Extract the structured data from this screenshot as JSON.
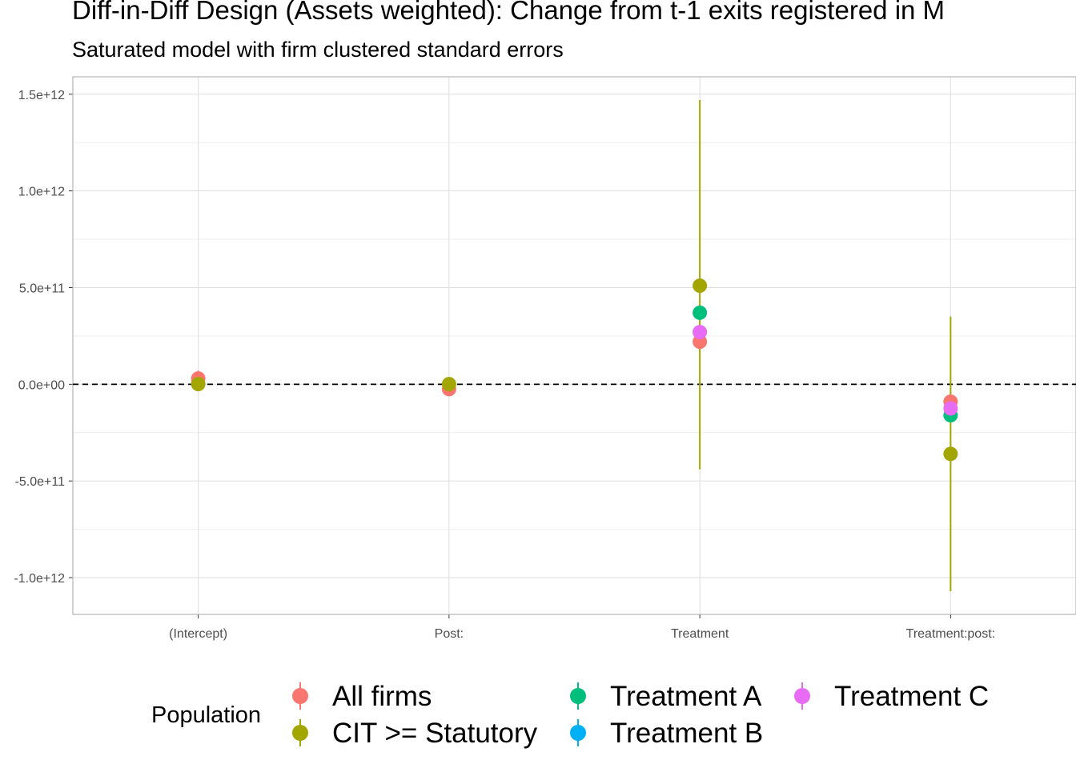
{
  "chart_data": {
    "type": "scatter",
    "title": "Diff-in-Diff Design (Assets weighted): Change from t-1 exits registered in M",
    "subtitle": "Saturated model with firm clustered standard errors",
    "xlabel": "",
    "ylabel": "",
    "categories": [
      "(Intercept)",
      "Post:",
      "Treatment",
      "Treatment:post:"
    ],
    "y_ticks": [
      {
        "value": 1500000000000.0,
        "label": "1.5e+12"
      },
      {
        "value": 1000000000000.0,
        "label": "1.0e+12"
      },
      {
        "value": 500000000000.0,
        "label": "5.0e+11"
      },
      {
        "value": 0,
        "label": "0.0e+00"
      },
      {
        "value": -500000000000.0,
        "label": "-5.0e+11"
      },
      {
        "value": -1000000000000.0,
        "label": "-1.0e+12"
      }
    ],
    "ylim": [
      -1190000000000.0,
      1590000000000.0
    ],
    "reference_line": 0,
    "grid": true,
    "legend_title": "Population",
    "legend_position": "bottom",
    "series": [
      {
        "name": "All firms",
        "color": "#F8766D",
        "points": [
          {
            "category": "(Intercept)",
            "y": 30000000000.0,
            "lo": -30000000000.0,
            "hi": 70000000000.0
          },
          {
            "category": "Post:",
            "y": -25000000000.0,
            "lo": -40000000000.0,
            "hi": -10000000000.0
          },
          {
            "category": "Treatment",
            "y": 220000000000.0,
            "lo": 220000000000.0,
            "hi": 220000000000.0
          },
          {
            "category": "Treatment:post:",
            "y": -90000000000.0,
            "lo": -90000000000.0,
            "hi": -90000000000.0
          }
        ]
      },
      {
        "name": "CIT >= Statutory",
        "color": "#A3A500",
        "points": [
          {
            "category": "(Intercept)",
            "y": 1000000000.0,
            "lo": -10000000000.0,
            "hi": 10000000000.0
          },
          {
            "category": "Post:",
            "y": 1000000000.0,
            "lo": 1000000000.0,
            "hi": 1000000000.0
          },
          {
            "category": "Treatment",
            "y": 510000000000.0,
            "lo": -440000000000.0,
            "hi": 1470000000000.0
          },
          {
            "category": "Treatment:post:",
            "y": -360000000000.0,
            "lo": -1070000000000.0,
            "hi": 350000000000.0
          }
        ]
      },
      {
        "name": "Treatment A",
        "color": "#00BF7D",
        "points": [
          {
            "category": "Treatment",
            "y": 370000000000.0,
            "lo": 370000000000.0,
            "hi": 370000000000.0
          },
          {
            "category": "Treatment:post:",
            "y": -160000000000.0,
            "lo": -160000000000.0,
            "hi": -160000000000.0
          }
        ]
      },
      {
        "name": "Treatment B",
        "color": "#00B0F6",
        "points": []
      },
      {
        "name": "Treatment C",
        "color": "#E76BF3",
        "points": [
          {
            "category": "Treatment",
            "y": 270000000000.0,
            "lo": 270000000000.0,
            "hi": 270000000000.0
          },
          {
            "category": "Treatment:post:",
            "y": -125000000000.0,
            "lo": -125000000000.0,
            "hi": -125000000000.0
          }
        ]
      }
    ]
  }
}
